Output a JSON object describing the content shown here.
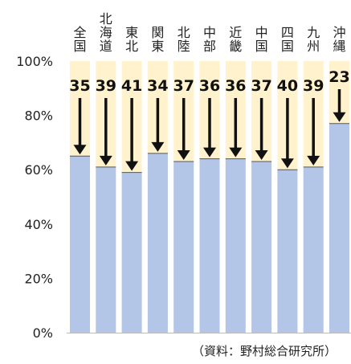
{
  "chart_data": {
    "type": "bar",
    "categories": [
      "全国",
      "北海道",
      "東北",
      "関東",
      "北陸",
      "中部",
      "近畿",
      "中国",
      "四国",
      "九州",
      "沖縄"
    ],
    "values": [
      65,
      61,
      59,
      66,
      63,
      64,
      64,
      63,
      60,
      61,
      77
    ],
    "drop_labels": [
      "35",
      "39",
      "41",
      "34",
      "37",
      "36",
      "36",
      "37",
      "40",
      "39",
      "23"
    ],
    "ylim": [
      0,
      100
    ],
    "ytick_labels": [
      "0%",
      "20%",
      "40%",
      "60%",
      "80%",
      "100%"
    ],
    "ytick_values": [
      0,
      20,
      40,
      60,
      80,
      100
    ],
    "grid": false,
    "colors": {
      "bar": "#b4c6e7",
      "background_band": "#fff2cc",
      "arrow": "#111111"
    }
  },
  "source": "（資料：野村総合研究所）"
}
